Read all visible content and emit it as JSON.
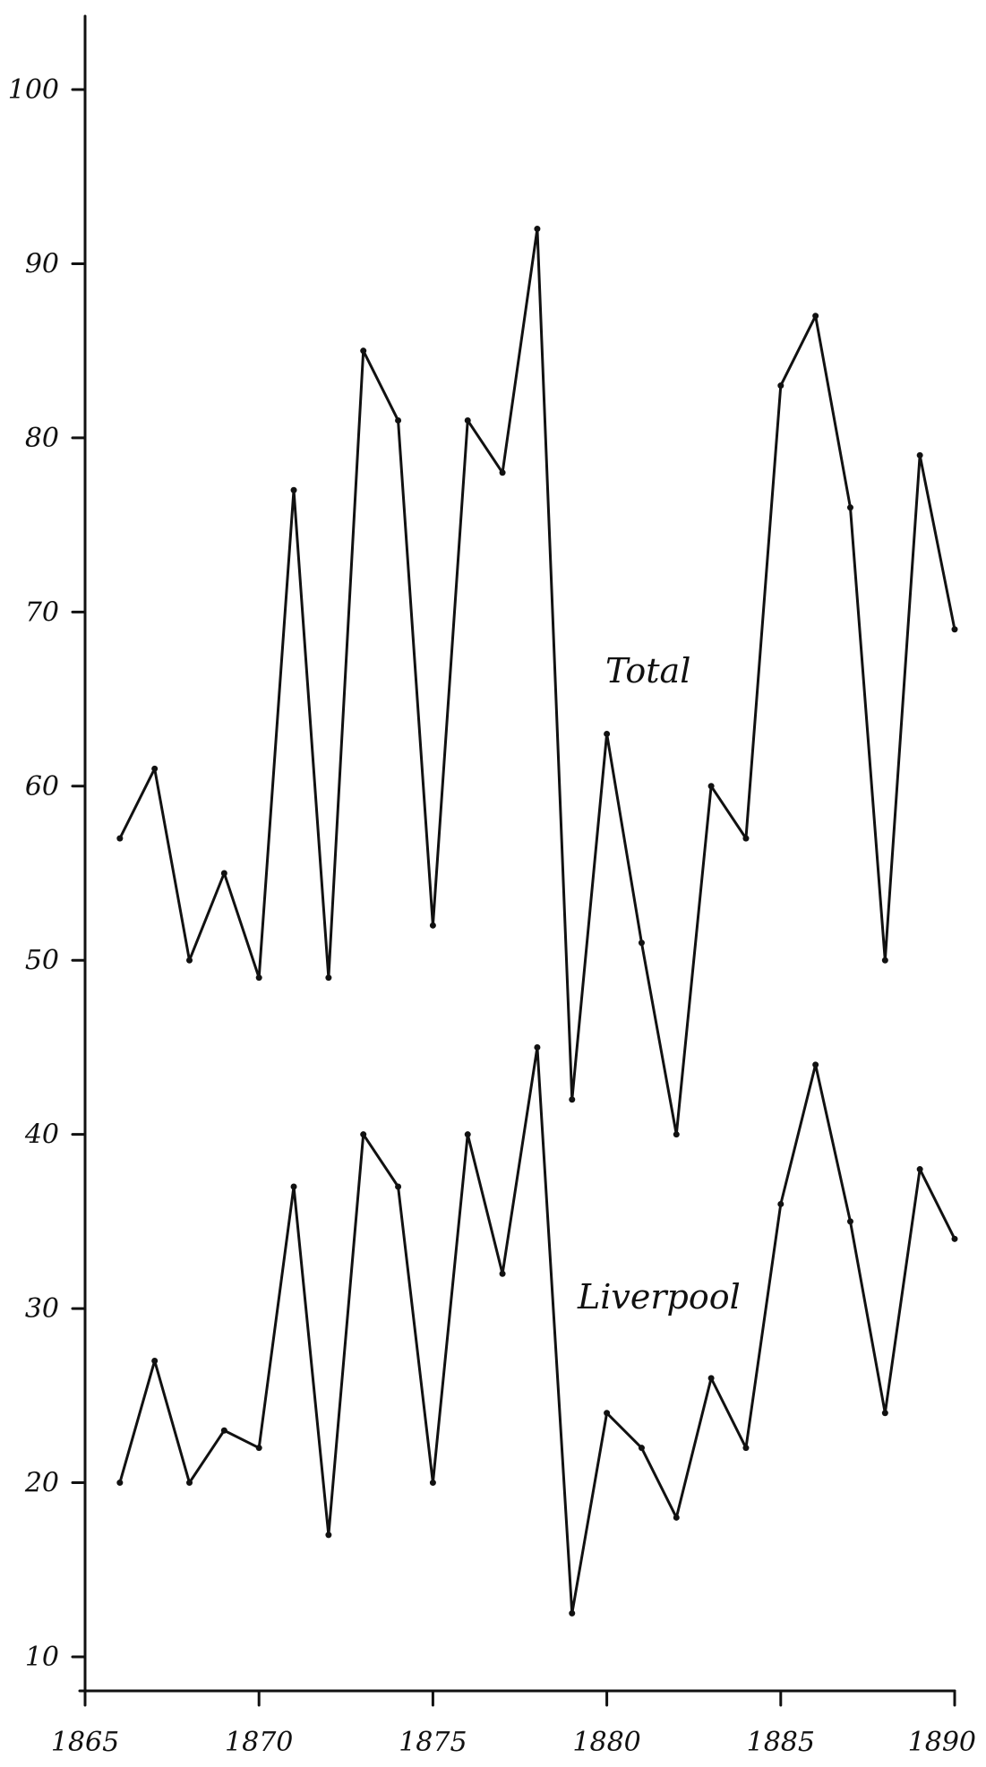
{
  "chart_data": {
    "type": "line",
    "title": "",
    "xlabel": "",
    "ylabel": "",
    "xlim": [
      1865,
      1890
    ],
    "ylim": [
      7,
      104
    ],
    "grid": false,
    "legend": "none",
    "x_ticks": [
      1865,
      1870,
      1875,
      1880,
      1885,
      1890
    ],
    "y_ticks": [
      10,
      20,
      30,
      40,
      50,
      60,
      70,
      80,
      90,
      100
    ],
    "x_tick_labels": [
      "1865",
      "1870",
      "1875",
      "1880",
      "1885",
      "1890"
    ],
    "y_tick_labels": [
      "10",
      "20",
      "30",
      "40",
      "50",
      "60",
      "70",
      "80",
      "90",
      "100"
    ],
    "x": [
      1866,
      1867,
      1868,
      1869,
      1870,
      1871,
      1872,
      1873,
      1874,
      1875,
      1876,
      1877,
      1878,
      1879,
      1880,
      1881,
      1882,
      1883,
      1884,
      1885,
      1886,
      1887,
      1888,
      1889,
      1890
    ],
    "series": [
      {
        "name": "Total",
        "values": [
          57,
          61,
          50,
          55,
          49,
          77,
          49,
          85,
          81,
          52,
          81,
          78,
          92,
          42,
          63,
          51,
          40,
          60,
          57,
          83,
          87,
          76,
          50,
          79,
          69
        ]
      },
      {
        "name": "Liverpool",
        "values": [
          20,
          27,
          20,
          23,
          22,
          37,
          17,
          40,
          37,
          20,
          40,
          32,
          45,
          12.5,
          24,
          22,
          18,
          26,
          22,
          36,
          44,
          35,
          24,
          38,
          34
        ]
      }
    ],
    "series_labels": [
      "Total",
      "Liverpool"
    ],
    "colors": {
      "line": "#111111",
      "background": "#ffffff"
    }
  }
}
